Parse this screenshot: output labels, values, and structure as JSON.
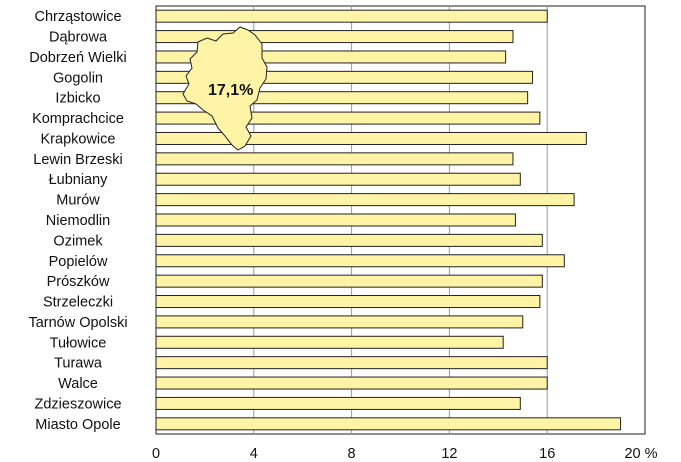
{
  "chart_data": {
    "type": "bar",
    "orientation": "horizontal",
    "categories": [
      "Chrząstowice",
      "Dąbrowa",
      "Dobrzeń Wielki",
      "Gogolin",
      "Izbicko",
      "Komprachcice",
      "Krapkowice",
      "Lewin Brzeski",
      "Łubniany",
      "Murów",
      "Niemodlin",
      "Ozimek",
      "Popielów",
      "Prószków",
      "Strzeleczki",
      "Tarnów Opolski",
      "Tułowice",
      "Turawa",
      "Walce",
      "Zdzieszowice",
      "Miasto Opole"
    ],
    "values": [
      16.0,
      14.6,
      14.3,
      15.4,
      15.2,
      15.7,
      17.6,
      14.6,
      14.9,
      17.1,
      14.7,
      15.8,
      16.7,
      15.8,
      15.7,
      15.0,
      14.2,
      16.0,
      16.0,
      14.9,
      19.0
    ],
    "xlim": [
      0,
      20
    ],
    "ticks": [
      "0",
      "4",
      "8",
      "12",
      "16",
      "20 %"
    ],
    "tick_values": [
      0,
      4,
      8,
      12,
      16,
      20
    ],
    "grid": true,
    "annotation": {
      "text": "17,1%",
      "shape": "map-silhouette"
    },
    "colors": {
      "bar_fill": "#fff4a6",
      "bar_stroke": "#222222",
      "grid": "#9a9a9a",
      "map_fill": "#fff4a6"
    }
  }
}
